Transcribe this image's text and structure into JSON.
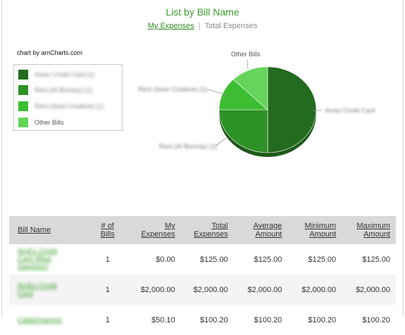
{
  "page": {
    "title": "List by Bill Name",
    "tabs": [
      {
        "label": "My Expenses",
        "active": true
      },
      {
        "label": "Total Expenses",
        "active": false
      }
    ],
    "separator": "|"
  },
  "chart": {
    "credit": "chart by amCharts.com",
    "legend": [
      {
        "label": "Amex Credit Card (1)",
        "color": "#236b1e",
        "obscured": true
      },
      {
        "label": "Rent (Al Bonney) (1)",
        "color": "#2e9127",
        "obscured": true
      },
      {
        "label": "Rent (Sean Creative) (1)",
        "color": "#3dbd32",
        "obscured": true
      },
      {
        "label": "Other Bills",
        "color": "#66d45a",
        "obscured": false
      }
    ],
    "slice_labels": [
      {
        "text": "Amex Credit Card",
        "obscured": true
      },
      {
        "text": "Rent (Al Bonney) (1)",
        "obscured": true
      },
      {
        "text": "Rent (Sean Creative) (1)",
        "obscured": true
      },
      {
        "text": "Other Bills",
        "obscured": false
      }
    ]
  },
  "chart_data": {
    "type": "pie",
    "slices": [
      {
        "label": "Amex Credit Card",
        "share": 0.5,
        "color": "#236b1e"
      },
      {
        "label": "Rent (Al Bonney)",
        "share": 0.25,
        "color": "#2e9127"
      },
      {
        "label": "Rent (Sean Creative)",
        "share": 0.125,
        "color": "#3dbd32"
      },
      {
        "label": "Other Bills",
        "share": 0.125,
        "color": "#66d45a"
      }
    ]
  },
  "table": {
    "headers": [
      "Bill Name",
      "# of Bills",
      "My Expenses",
      "Total Expenses",
      "Average Amount",
      "Minimum Amount",
      "Maximum Amount"
    ],
    "rows": [
      {
        "name": "AmEx Credit Card (Blue Sapphire)",
        "count": "1",
        "my": "$0.00",
        "total": "$125.00",
        "avg": "$125.00",
        "min": "$125.00",
        "max": "$125.00"
      },
      {
        "name": "AmEx Credit Card",
        "count": "1",
        "my": "$2,000.00",
        "total": "$2,000.00",
        "avg": "$2,000.00",
        "min": "$2,000.00",
        "max": "$2,000.00"
      },
      {
        "name": "Cable/Internet",
        "count": "1",
        "my": "$50.10",
        "total": "$100.20",
        "avg": "$100.20",
        "min": "$100.20",
        "max": "$100.20"
      }
    ]
  }
}
